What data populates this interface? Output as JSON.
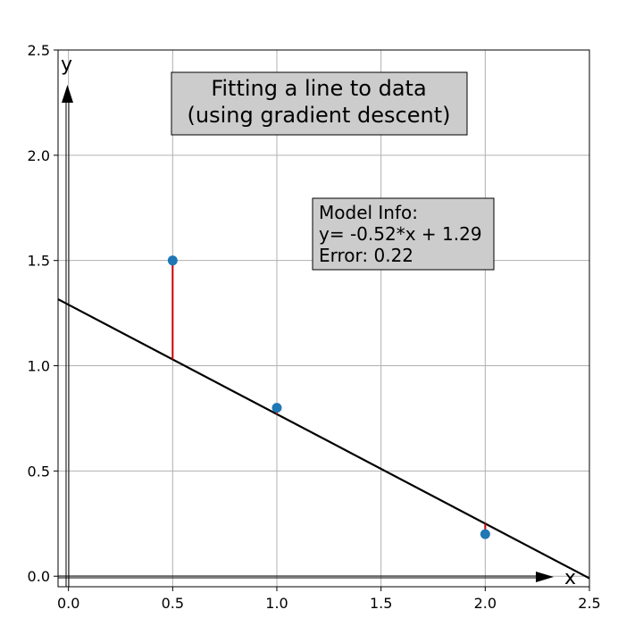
{
  "chart_data": {
    "type": "scatter",
    "title_lines": [
      "Fitting a line to data",
      "(using gradient descent)"
    ],
    "xlabel": "x",
    "ylabel": "y",
    "xlim": [
      -0.05,
      2.5
    ],
    "ylim": [
      -0.05,
      2.5
    ],
    "xticks": [
      "0.0",
      "0.5",
      "1.0",
      "1.5",
      "2.0",
      "2.5"
    ],
    "yticks": [
      "0.0",
      "0.5",
      "1.0",
      "1.5",
      "2.0",
      "2.5"
    ],
    "grid": true,
    "points": [
      {
        "x": 0.5,
        "y": 1.5
      },
      {
        "x": 1.0,
        "y": 0.8
      },
      {
        "x": 2.0,
        "y": 0.2
      }
    ],
    "fit_line": {
      "slope": -0.52,
      "intercept": 1.29
    },
    "residuals_shown": true,
    "info_box_lines": [
      "Model Info:",
      "y= -0.52*x + 1.29",
      "Error: 0.22"
    ],
    "colors": {
      "points": "#1f77b4",
      "fit_line": "#000000",
      "residuals": "#cc0000",
      "grid": "#b0b0b0",
      "box_fill": "#cccccc"
    }
  }
}
